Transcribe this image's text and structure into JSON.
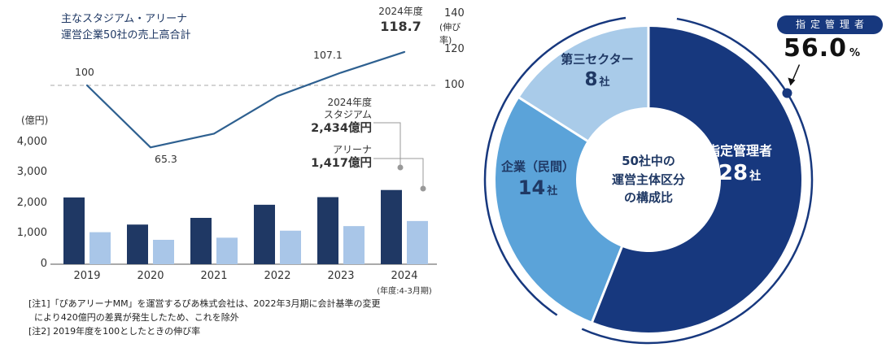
{
  "colors": {
    "navy_text": "#1f3864",
    "bar_dark": "#1f3864",
    "bar_light": "#a9c6e8",
    "line_blue": "#2e6090",
    "donut_navy": "#17387e",
    "donut_mid_blue": "#5ba3d9",
    "donut_light_blue": "#a9cbe9",
    "connector_gray": "#999999"
  },
  "left_chart": {
    "title": "主なスタジアム・アリーナ\n運営企業50社の売上高合計",
    "unit_label": "(億円)",
    "rate_axis_label": "(伸び率)",
    "y_ticks": [
      "4,000",
      "3,000",
      "2,000",
      "1,000",
      "0"
    ],
    "rate_ticks": [
      "140",
      "120",
      "100"
    ],
    "years": [
      "2019",
      "2020",
      "2021",
      "2022",
      "2023",
      "2024"
    ],
    "year_note": "(年度:4-3月期)",
    "line_labels": {
      "y2019": "100",
      "y2020": "65.3",
      "y2023": "107.1",
      "latest_year": "2024年度",
      "latest_value": "118.7"
    },
    "bar_annotation": {
      "year": "2024年度",
      "stadium_label": "スタジアム",
      "stadium_value": "2,434億円",
      "arena_label": "アリーナ",
      "arena_value": "1,417億円"
    },
    "notes": "[注1]「ぴあアリーナMM」を運営するぴあ株式会社は、2022年3月期に会計基準の変更\n  により420億円の差異が発生したため、これを除外\n[注2] 2019年度を100としたときの伸び率"
  },
  "right_chart": {
    "center_label": "50社中の\n運営主体区分\nの構成比",
    "badge_label": "指定管理者",
    "highlight_value": "56.0",
    "highlight_unit": "%",
    "segments": [
      {
        "label": "指定管理者",
        "count": "28",
        "unit": "社"
      },
      {
        "label": "企業（民間）",
        "count": "14",
        "unit": "社"
      },
      {
        "label": "第三セクター",
        "count": "8",
        "unit": "社"
      }
    ]
  },
  "chart_data": [
    {
      "type": "bar",
      "title": "主なスタジアム・アリーナ運営企業50社の売上高合計",
      "categories": [
        "2019",
        "2020",
        "2021",
        "2022",
        "2023",
        "2024"
      ],
      "series": [
        {
          "name": "スタジアム",
          "values": [
            2190,
            1300,
            1520,
            1950,
            2200,
            2434
          ],
          "color": "#1f3864"
        },
        {
          "name": "アリーナ",
          "values": [
            1050,
            800,
            870,
            1100,
            1250,
            1417
          ],
          "color": "#a9c6e8"
        }
      ],
      "ylabel": "億円",
      "ylim": [
        0,
        4000
      ]
    },
    {
      "type": "line",
      "name": "伸び率（2019年度=100）",
      "categories": [
        "2019",
        "2020",
        "2021",
        "2022",
        "2023",
        "2024"
      ],
      "values": [
        100,
        65.3,
        73,
        94,
        107.1,
        118.7
      ],
      "axis": "right",
      "ticks": [
        140,
        120,
        100
      ],
      "baseline": 100
    },
    {
      "type": "pie",
      "title": "50社中の運営主体区分の構成比",
      "labels": [
        "指定管理者",
        "企業（民間）",
        "第三セクター"
      ],
      "values": [
        28,
        14,
        8
      ],
      "unit": "社",
      "percent_highlight": {
        "label": "指定管理者",
        "value": 56.0
      },
      "colors": [
        "#17387e",
        "#5ba3d9",
        "#a9cbe9"
      ]
    }
  ]
}
